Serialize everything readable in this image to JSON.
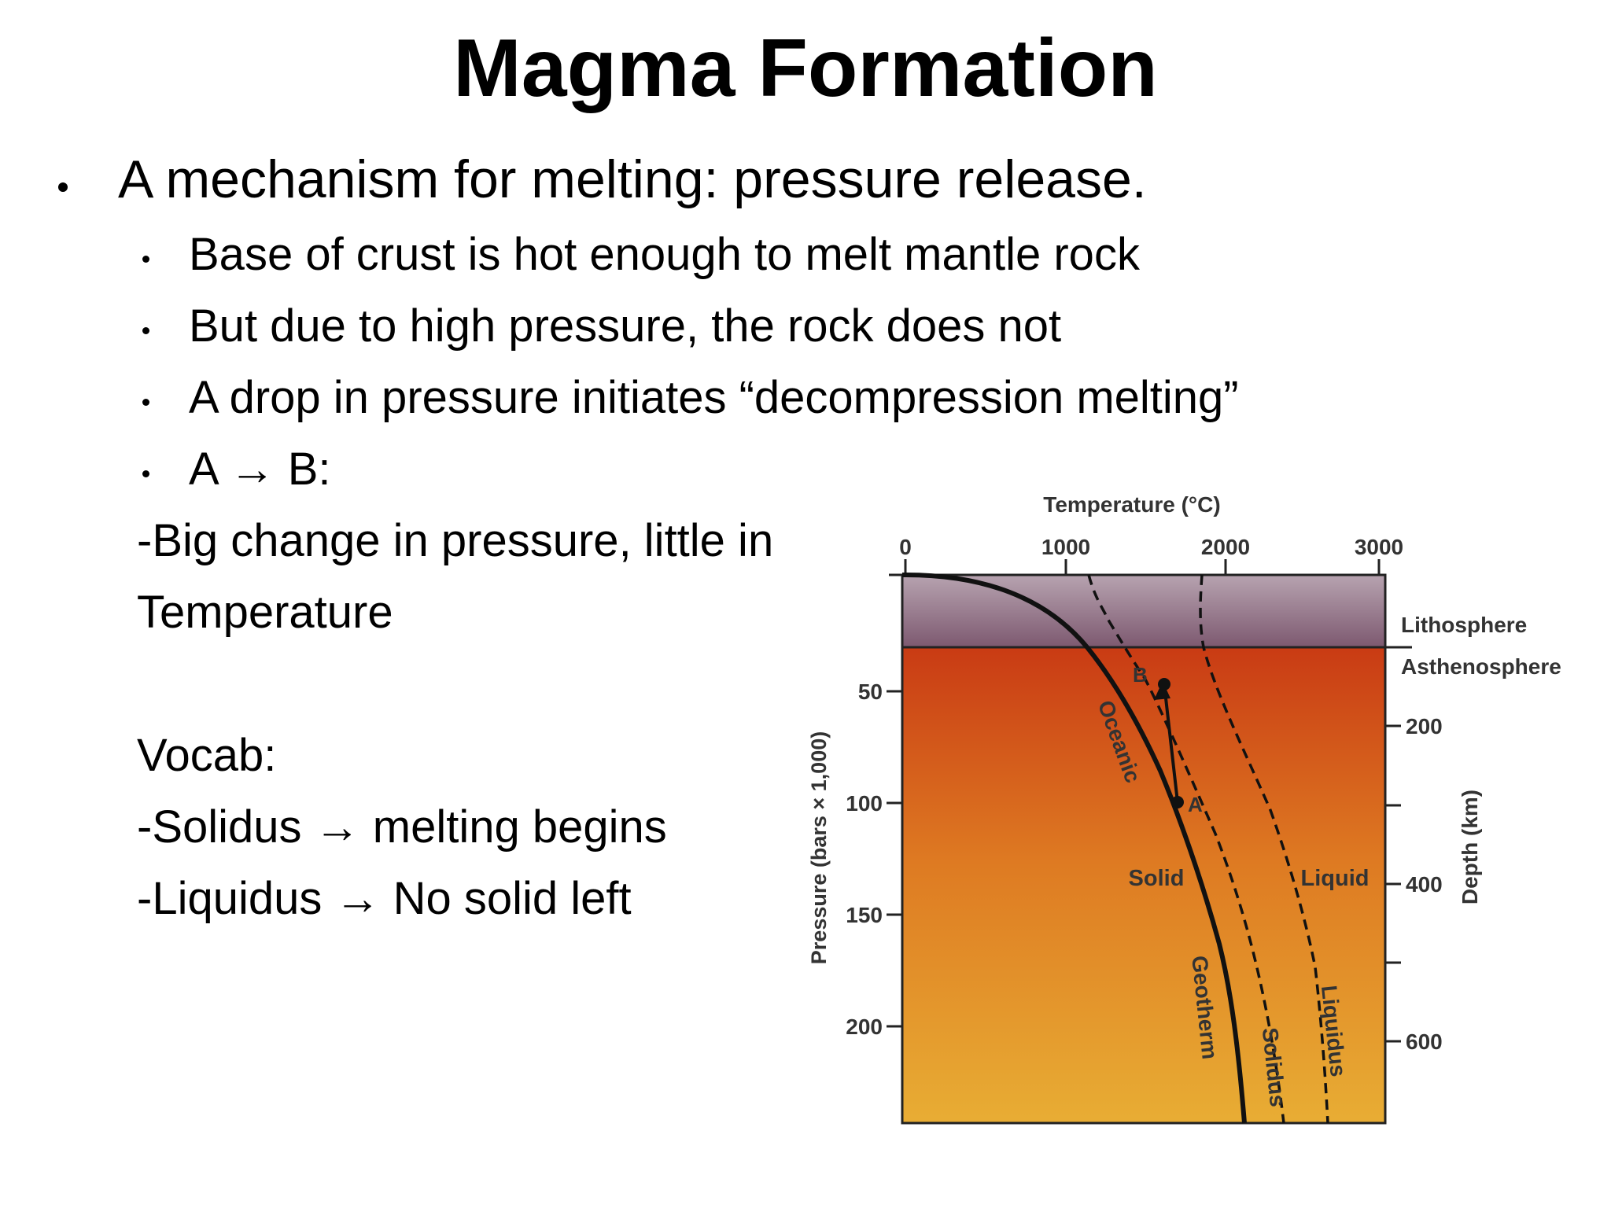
{
  "slide": {
    "title": "Magma Formation",
    "bullet_main": "A mechanism for melting: pressure release.",
    "sub_bullets": [
      "Base of crust is hot enough to melt mantle rock",
      "But due to high pressure, the rock does not",
      "A drop in pressure initiates “decompression melting”",
      "A → B:"
    ],
    "note_lines": [
      "-Big change in pressure, little in",
      "Temperature"
    ],
    "vocab_heading": "Vocab:",
    "vocab_items": [
      "-Solidus → melting begins",
      "-Liquidus → No solid left"
    ]
  },
  "diagram": {
    "top_axis_title": "Temperature (°C)",
    "top_ticks": [
      "0",
      "1000",
      "2000",
      "3000"
    ],
    "left_axis_title": "Pressure (bars × 1,000)",
    "left_ticks": [
      "50",
      "100",
      "150",
      "200"
    ],
    "right_axis_title": "Depth (km)",
    "right_ticks": [
      "200",
      "400",
      "600"
    ],
    "layer_labels": [
      "Lithosphere",
      "Asthenosphere"
    ],
    "region_labels": [
      "Solid",
      "Liquid"
    ],
    "curve_labels": [
      "Oceanic",
      "Geotherm",
      "Solidus",
      "Liquidus"
    ],
    "point_labels": [
      "A",
      "B"
    ],
    "colors": {
      "lithosphere_top": "#b7a3b0",
      "lithosphere_bottom": "#7d5970",
      "mantle_top": "#c93b14",
      "mantle_mid": "#de7a22",
      "mantle_bottom": "#e8ad34"
    }
  }
}
